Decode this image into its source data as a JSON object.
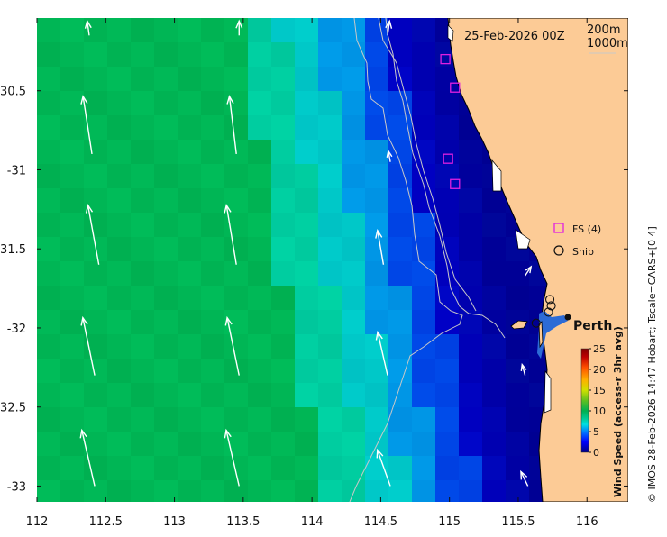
{
  "map": {
    "date_label": "25-Feb-2026 00Z",
    "isobath_labels": [
      "200m",
      "1000m"
    ],
    "place_label": "Perth",
    "x_axis": {
      "ticks": [
        112,
        112.5,
        113,
        113.5,
        114,
        114.5,
        115,
        115.5,
        116
      ],
      "labels": [
        "112",
        "112.5",
        "113",
        "113.5",
        "114",
        "114.5",
        "115",
        "115.5",
        "116"
      ],
      "range": [
        112,
        116.3
      ]
    },
    "y_axis": {
      "ticks": [
        -30.5,
        -31,
        -31.5,
        -32,
        -32.5,
        -33
      ],
      "labels": [
        "-30.5",
        "-31",
        "-31.5",
        "-32",
        "-32.5",
        "-33"
      ],
      "range": [
        -33.1,
        -30.04
      ]
    },
    "legend": {
      "fs_label": "FS (4)",
      "ship_label": "Ship"
    },
    "colorbar": {
      "title": "Wind Speed (access-r 3hr avg)",
      "ticks": [
        "0",
        "5",
        "10",
        "15",
        "20",
        "25"
      ],
      "tick_values": [
        0,
        5,
        10,
        15,
        20,
        25
      ],
      "range": [
        0,
        25
      ],
      "colors": [
        "#00007f",
        "#0000ff",
        "#0080ff",
        "#00e0e0",
        "#00c890",
        "#00b050",
        "#60c020",
        "#d0e000",
        "#ffb000",
        "#ff5000",
        "#c00000",
        "#800000"
      ]
    },
    "credit": "© IMOS 28-Feb-2026 14:47 Hobart; Tscale=CARS+[0 4]",
    "fs_stations": [
      {
        "lon": 114.97,
        "lat": -30.3
      },
      {
        "lon": 115.04,
        "lat": -30.48
      },
      {
        "lon": 114.99,
        "lat": -30.93
      },
      {
        "lon": 115.04,
        "lat": -31.09
      }
    ],
    "ship_positions": [
      {
        "lon": 115.73,
        "lat": -31.82
      },
      {
        "lon": 115.74,
        "lat": -31.86
      },
      {
        "lon": 115.72,
        "lat": -31.9
      },
      {
        "lon": 115.63,
        "lat": -31.97
      }
    ],
    "perth": {
      "lon": 115.86,
      "lat": -31.95
    },
    "wind_arrows": [
      {
        "lon": 112.4,
        "lat": -30.9,
        "u": -0.9,
        "v": 3.2
      },
      {
        "lon": 113.45,
        "lat": -30.9,
        "u": -0.7,
        "v": 3.2
      },
      {
        "lon": 112.45,
        "lat": -31.6,
        "u": -1.1,
        "v": 3.3
      },
      {
        "lon": 113.45,
        "lat": -31.6,
        "u": -1.0,
        "v": 3.3
      },
      {
        "lon": 112.42,
        "lat": -32.3,
        "u": -1.2,
        "v": 3.2
      },
      {
        "lon": 113.47,
        "lat": -32.3,
        "u": -1.2,
        "v": 3.2
      },
      {
        "lon": 112.42,
        "lat": -33.0,
        "u": -1.3,
        "v": 3.1
      },
      {
        "lon": 113.47,
        "lat": -33.0,
        "u": -1.3,
        "v": 3.1
      },
      {
        "lon": 112.38,
        "lat": -30.15,
        "u": -0.2,
        "v": 0.8
      },
      {
        "lon": 113.47,
        "lat": -30.15,
        "u": 0.0,
        "v": 0.8
      },
      {
        "lon": 114.55,
        "lat": -30.15,
        "u": 0.2,
        "v": 0.8
      },
      {
        "lon": 114.57,
        "lat": -30.95,
        "u": -0.2,
        "v": 0.6
      },
      {
        "lon": 114.52,
        "lat": -31.6,
        "u": -0.6,
        "v": 1.9
      },
      {
        "lon": 114.55,
        "lat": -32.3,
        "u": -1.0,
        "v": 2.4
      },
      {
        "lon": 114.57,
        "lat": -33.0,
        "u": -1.3,
        "v": 2.0
      },
      {
        "lon": 115.55,
        "lat": -31.67,
        "u": 0.6,
        "v": 0.5
      },
      {
        "lon": 115.55,
        "lat": -32.3,
        "u": -0.3,
        "v": 0.6
      },
      {
        "lon": 115.57,
        "lat": -33.0,
        "u": -0.7,
        "v": 0.8
      }
    ]
  }
}
